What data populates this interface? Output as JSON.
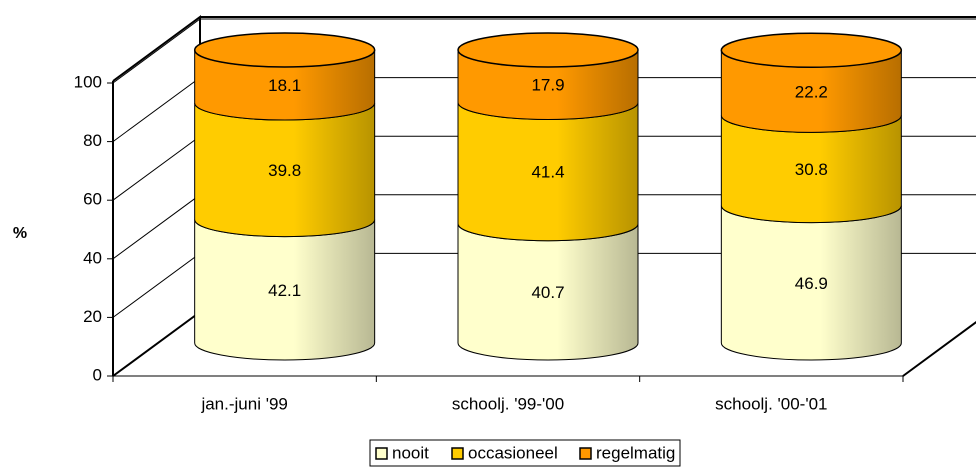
{
  "chart_data": {
    "type": "bar",
    "stacked": true,
    "style": "3d-cylinder",
    "title": "",
    "xlabel": "",
    "ylabel": "%",
    "ylim": [
      0,
      100
    ],
    "yticks": [
      "0",
      "20",
      "40",
      "60",
      "80",
      "100"
    ],
    "grid": true,
    "legend_position": "bottom",
    "categories": [
      "jan.-juni '99",
      "schoolj. '99-'00",
      "schoolj. '00-'01"
    ],
    "series": [
      {
        "name": "nooit",
        "values": [
          42.1,
          40.7,
          46.9
        ],
        "labels": [
          "42.1",
          "40.7",
          "46.9"
        ],
        "color": "#FFFFCC"
      },
      {
        "name": "occasioneel",
        "values": [
          39.8,
          41.4,
          30.8
        ],
        "labels": [
          "39.8",
          "41.4",
          "30.8"
        ],
        "color": "#FFCC00"
      },
      {
        "name": "regelmatig",
        "values": [
          18.1,
          17.9,
          22.2
        ],
        "labels": [
          "18.1",
          "17.9",
          "22.2"
        ],
        "color": "#FF9900"
      }
    ]
  }
}
